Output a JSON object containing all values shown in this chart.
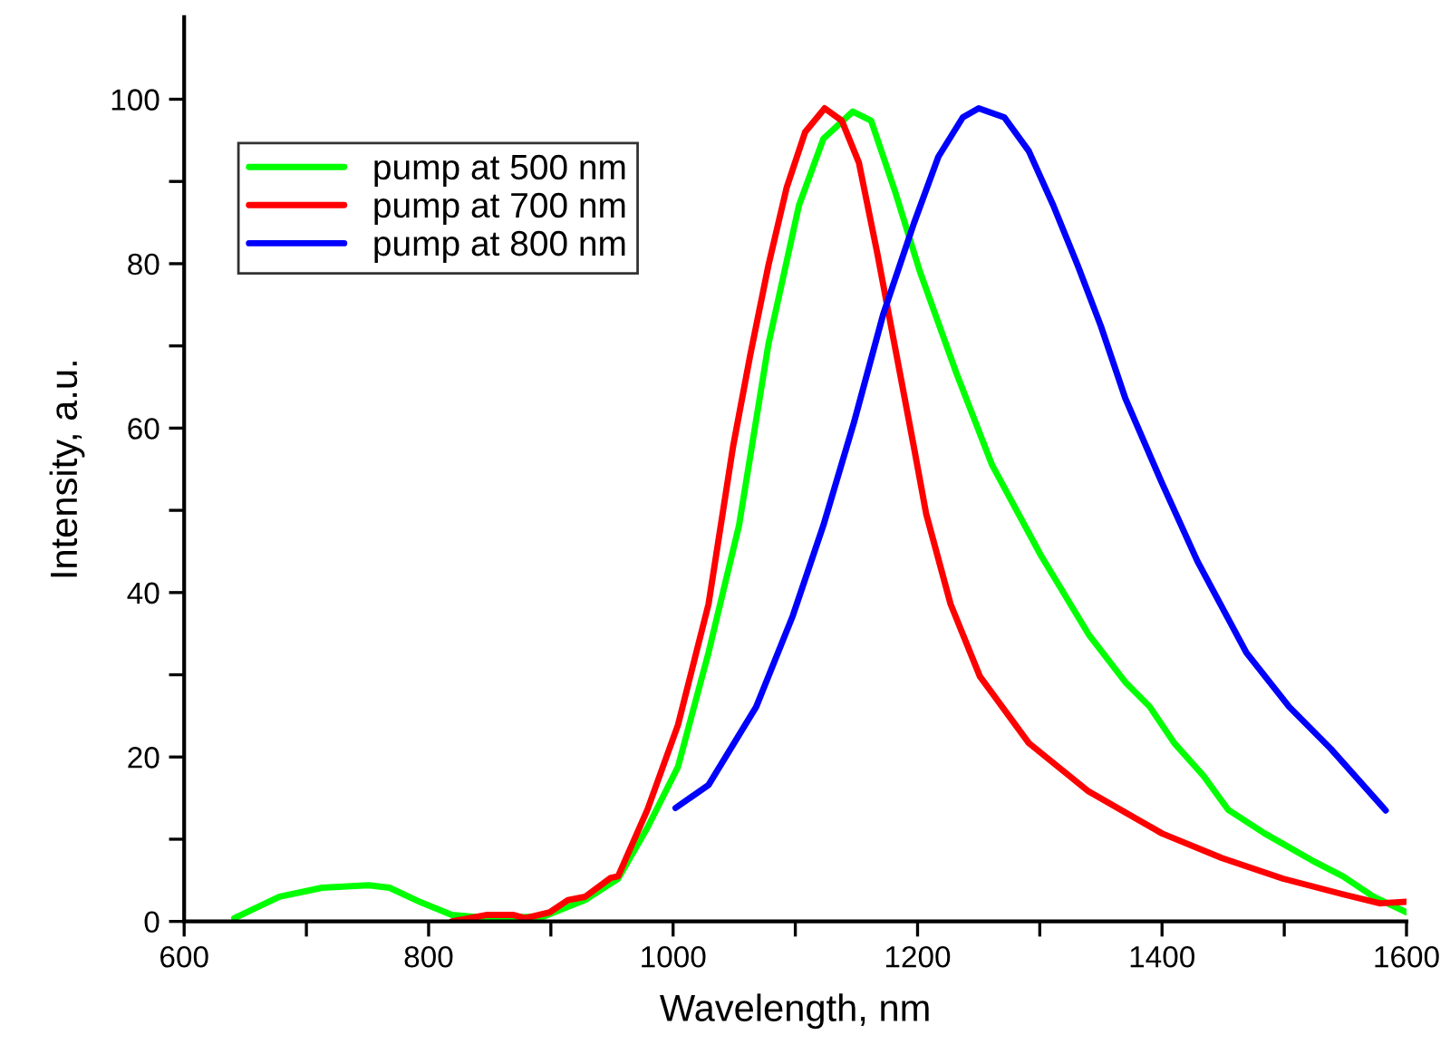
{
  "chart_data": {
    "type": "line",
    "xlabel": "Wavelength, nm",
    "ylabel": "Intensity, a.u.",
    "xlim": [
      600,
      1600
    ],
    "ylim": [
      0,
      110
    ],
    "xticks": [
      600,
      {
        "value": 700,
        "label": null
      },
      800,
      {
        "value": 900,
        "label": null
      },
      1000,
      {
        "value": 1100,
        "label": null
      },
      1200,
      {
        "value": 1300,
        "label": null
      },
      1400,
      {
        "value": 1500,
        "label": null
      },
      1600
    ],
    "yticks": [
      0,
      {
        "value": 10,
        "label": null
      },
      20,
      {
        "value": 30,
        "label": null
      },
      40,
      {
        "value": 50,
        "label": null
      },
      60,
      {
        "value": 70,
        "label": null
      },
      80,
      {
        "value": 90,
        "label": null
      },
      100
    ],
    "grid": false,
    "legend": "top left",
    "marker": "none",
    "line_style": "solid",
    "series": [
      {
        "name": "pump at 500 nm",
        "color": "#00ff00",
        "x": [
          641,
          678,
          713,
          751,
          768,
          794,
          819,
          848,
          894,
          928,
          955,
          979,
          1004,
          1029,
          1054,
          1078,
          1103,
          1123,
          1147,
          1162,
          1182,
          1202,
          1232,
          1261,
          1301,
          1340,
          1370,
          1390,
          1410,
          1434,
          1454,
          1484,
          1523,
          1548,
          1573,
          1600
        ],
        "values": [
          0.4,
          3.0,
          4.1,
          4.4,
          4.1,
          2.3,
          0.8,
          0.4,
          0.6,
          2.6,
          5.2,
          11.4,
          18.8,
          32.7,
          48.2,
          70.2,
          87.1,
          95.2,
          98.5,
          97.4,
          88.6,
          79.0,
          66.6,
          55.5,
          44.5,
          34.9,
          29.1,
          26.1,
          21.7,
          17.7,
          13.6,
          10.7,
          7.4,
          5.5,
          3.0,
          1.1
        ]
      },
      {
        "name": "pump at 700 nm",
        "color": "#ff0000",
        "x": [
          819,
          848,
          869,
          879,
          899,
          914,
          928,
          949,
          955,
          979,
          1004,
          1029,
          1049,
          1063,
          1078,
          1093,
          1108,
          1124,
          1138,
          1152,
          1167,
          1182,
          1197,
          1207,
          1227,
          1251,
          1291,
          1340,
          1400,
          1449,
          1499,
          1548,
          1578,
          1600
        ],
        "values": [
          0.0,
          0.8,
          0.8,
          0.4,
          1.1,
          2.6,
          3.0,
          5.3,
          5.5,
          13.6,
          23.9,
          38.6,
          57.7,
          68.8,
          79.8,
          89.3,
          96.0,
          98.9,
          97.4,
          92.3,
          81.3,
          69.5,
          57.7,
          49.6,
          38.6,
          29.8,
          21.7,
          15.8,
          10.7,
          7.7,
          5.2,
          3.3,
          2.2,
          2.4
        ]
      },
      {
        "name": "pump at 800 nm",
        "color": "#0000ff",
        "x": [
          1002,
          1029,
          1068,
          1098,
          1123,
          1148,
          1172,
          1197,
          1217,
          1237,
          1250,
          1271,
          1291,
          1311,
          1331,
          1350,
          1370,
          1400,
          1429,
          1469,
          1504,
          1538,
          1583
        ],
        "values": [
          13.8,
          16.6,
          26.1,
          37.2,
          48.2,
          60.7,
          73.9,
          84.9,
          93.0,
          97.8,
          98.9,
          97.8,
          93.7,
          87.1,
          79.8,
          72.4,
          63.6,
          53.3,
          43.8,
          32.7,
          26.1,
          21.0,
          13.5
        ]
      }
    ]
  }
}
